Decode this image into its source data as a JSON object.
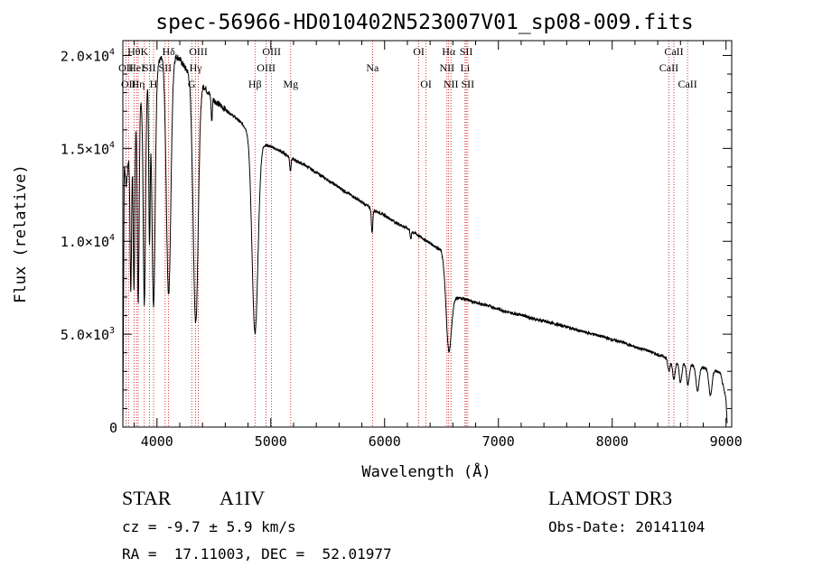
{
  "chart_data": {
    "type": "line",
    "title": "spec-56966-HD010402N523007V01_sp08-009.fits",
    "xlabel": "Wavelength (Å)",
    "ylabel": "Flux (relative)",
    "xlim": [
      3700,
      9050
    ],
    "ylim": [
      0,
      20800
    ],
    "x_ticks": [
      4000,
      5000,
      6000,
      7000,
      8000,
      9000
    ],
    "x_tick_labels": [
      "4000",
      "5000",
      "6000",
      "7000",
      "8000",
      "9000"
    ],
    "y_ticks": [
      {
        "value": 0,
        "mant": "0",
        "exp": ""
      },
      {
        "value": 5000,
        "mant": "5.0×10",
        "exp": "3"
      },
      {
        "value": 10000,
        "mant": "1.0×10",
        "exp": "4"
      },
      {
        "value": 15000,
        "mant": "1.5×10",
        "exp": "4"
      },
      {
        "value": 20000,
        "mant": "2.0×10",
        "exp": "4"
      }
    ],
    "continuum": [
      [
        3700,
        0
      ],
      [
        3712,
        14000
      ],
      [
        3730,
        13000
      ],
      [
        3760,
        15000
      ],
      [
        3800,
        16500
      ],
      [
        3850,
        17500
      ],
      [
        3900,
        18300
      ],
      [
        3950,
        18800
      ],
      [
        4000,
        19500
      ],
      [
        4050,
        20000
      ],
      [
        4100,
        20200
      ],
      [
        4150,
        20100
      ],
      [
        4200,
        19800
      ],
      [
        4250,
        19300
      ],
      [
        4300,
        19000
      ],
      [
        4350,
        18800
      ],
      [
        4400,
        18500
      ],
      [
        4450,
        18000
      ],
      [
        4500,
        17600
      ],
      [
        4600,
        17100
      ],
      [
        4700,
        16600
      ],
      [
        4800,
        16000
      ],
      [
        4900,
        15300
      ],
      [
        5000,
        15100
      ],
      [
        5100,
        14800
      ],
      [
        5200,
        14400
      ],
      [
        5300,
        14100
      ],
      [
        5400,
        13700
      ],
      [
        5500,
        13300
      ],
      [
        5600,
        12900
      ],
      [
        5700,
        12500
      ],
      [
        5800,
        12100
      ],
      [
        5900,
        11700
      ],
      [
        6000,
        11400
      ],
      [
        6100,
        11000
      ],
      [
        6200,
        10700
      ],
      [
        6300,
        10300
      ],
      [
        6400,
        9900
      ],
      [
        6500,
        9500
      ],
      [
        6600,
        7000
      ],
      [
        6700,
        6900
      ],
      [
        6800,
        6700
      ],
      [
        6900,
        6550
      ],
      [
        7000,
        6350
      ],
      [
        7100,
        6150
      ],
      [
        7200,
        6050
      ],
      [
        7300,
        5850
      ],
      [
        7400,
        5700
      ],
      [
        7500,
        5550
      ],
      [
        7600,
        5400
      ],
      [
        7700,
        5200
      ],
      [
        7800,
        5050
      ],
      [
        7900,
        4900
      ],
      [
        8000,
        4700
      ],
      [
        8100,
        4550
      ],
      [
        8200,
        4300
      ],
      [
        8300,
        4150
      ],
      [
        8400,
        3900
      ],
      [
        8500,
        3700
      ],
      [
        8600,
        3500
      ],
      [
        8700,
        3350
      ],
      [
        8800,
        3200
      ],
      [
        8900,
        3050
      ],
      [
        8950,
        2900
      ],
      [
        9000,
        1500
      ],
      [
        9010,
        200
      ]
    ],
    "absorption_lines": [
      {
        "center": 3770,
        "depth": 8000,
        "width": 7
      },
      {
        "center": 3798,
        "depth": 9000,
        "width": 7
      },
      {
        "center": 3835,
        "depth": 10500,
        "width": 8
      },
      {
        "center": 3889,
        "depth": 11500,
        "width": 10
      },
      {
        "center": 3934,
        "depth": 8500,
        "width": 6
      },
      {
        "center": 3970,
        "depth": 12500,
        "width": 14
      },
      {
        "center": 4102,
        "depth": 13000,
        "width": 20
      },
      {
        "center": 4340,
        "depth": 13200,
        "width": 22
      },
      {
        "center": 4481,
        "depth": 1300,
        "width": 5
      },
      {
        "center": 4861,
        "depth": 10500,
        "width": 26
      },
      {
        "center": 5172,
        "depth": 700,
        "width": 6
      },
      {
        "center": 5890,
        "depth": 1300,
        "width": 6
      },
      {
        "center": 6230,
        "depth": 500,
        "width": 5
      },
      {
        "center": 6563,
        "depth": 3800,
        "width": 22
      },
      {
        "center": 8498,
        "depth": 700,
        "width": 10
      },
      {
        "center": 8542,
        "depth": 1000,
        "width": 12
      },
      {
        "center": 8600,
        "depth": 1100,
        "width": 12
      },
      {
        "center": 8665,
        "depth": 1100,
        "width": 12
      },
      {
        "center": 8750,
        "depth": 1300,
        "width": 14
      },
      {
        "center": 8863,
        "depth": 1400,
        "width": 14
      }
    ],
    "line_markers": [
      {
        "wavelength": 3727,
        "label": "OII",
        "row": 2
      },
      {
        "wavelength": 3750,
        "label": "OII",
        "row": 3
      },
      {
        "wavelength": 3798,
        "label": "Hθ",
        "row": 1
      },
      {
        "wavelength": 3820,
        "label": "HeI",
        "row": 2
      },
      {
        "wavelength": 3835,
        "label": "Hη",
        "row": 3
      },
      {
        "wavelength": 3889,
        "label": "K",
        "row": 1
      },
      {
        "wavelength": 3933,
        "label": "SII",
        "row": 2
      },
      {
        "wavelength": 3970,
        "label": "H",
        "row": 3
      },
      {
        "wavelength": 4072,
        "label": "SII",
        "row": 2
      },
      {
        "wavelength": 4102,
        "label": "Hδ",
        "row": 1
      },
      {
        "wavelength": 4305,
        "label": "G",
        "row": 3
      },
      {
        "wavelength": 4340,
        "label": "Hγ",
        "row": 2
      },
      {
        "wavelength": 4363,
        "label": "OIII",
        "row": 1
      },
      {
        "wavelength": 4861,
        "label": "Hβ",
        "row": 3
      },
      {
        "wavelength": 4959,
        "label": "OIII",
        "row": 2
      },
      {
        "wavelength": 5007,
        "label": "OIII",
        "row": 1
      },
      {
        "wavelength": 5175,
        "label": "Mg",
        "row": 3
      },
      {
        "wavelength": 5894,
        "label": "Na",
        "row": 2
      },
      {
        "wavelength": 6300,
        "label": "OI",
        "row": 1
      },
      {
        "wavelength": 6364,
        "label": "OI",
        "row": 3
      },
      {
        "wavelength": 6548,
        "label": "NII",
        "row": 2
      },
      {
        "wavelength": 6563,
        "label": "Hα",
        "row": 1
      },
      {
        "wavelength": 6583,
        "label": "NII",
        "row": 3
      },
      {
        "wavelength": 6707,
        "label": "Li",
        "row": 2
      },
      {
        "wavelength": 6717,
        "label": "SII",
        "row": 1
      },
      {
        "wavelength": 6731,
        "label": "SII",
        "row": 3
      },
      {
        "wavelength": 8498,
        "label": "CaII",
        "row": 2
      },
      {
        "wavelength": 8542,
        "label": "CaII",
        "row": 1
      },
      {
        "wavelength": 8662,
        "label": "CaII",
        "row": 3
      }
    ],
    "marker_color": "#cc0000",
    "line_color": "#000000"
  },
  "info": {
    "object_type": "STAR",
    "subclass": "A1IV",
    "survey": "LAMOST DR3",
    "cz": "cz = -9.7 ± 5.9 km/s",
    "obs_date": "Obs-Date: 20141104",
    "coords": "RA =  17.11003, DEC =  52.01977"
  }
}
